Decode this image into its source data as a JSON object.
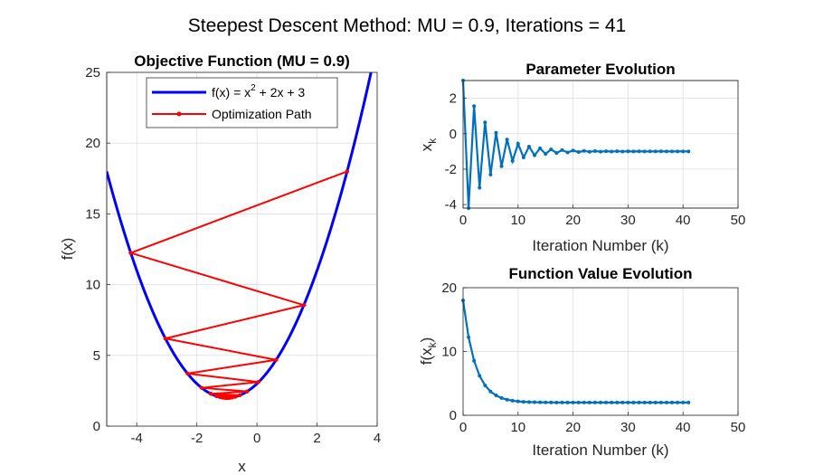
{
  "figure": {
    "title": "Steepest Descent Method: MU = 0.9, Iterations = 41",
    "colors": {
      "curve": "#0000FF",
      "path": "#FF0000",
      "series": "#0072BD"
    }
  },
  "chart_data": [
    {
      "type": "line",
      "title": "Objective Function (MU = 0.9)",
      "xlabel": "x",
      "ylabel": "f(x)",
      "xlim": [
        -5,
        4
      ],
      "ylim": [
        0,
        25
      ],
      "xticks": [
        -4,
        -2,
        0,
        2,
        4
      ],
      "yticks": [
        0,
        5,
        10,
        15,
        20,
        25
      ],
      "grid": true,
      "legend_position": "top",
      "function": "x^2 + 2x + 3",
      "series": [
        {
          "name_main": "f(x) = x",
          "name_sup": "2",
          "name_rest": " + 2x + 3",
          "color": "#0000FF",
          "style": "solid line"
        },
        {
          "name": "Optimization Path",
          "color": "#FF0000",
          "style": "line with point markers",
          "x": [
            3,
            -4.2,
            1.56,
            -3.048,
            0.6384,
            -2.3107,
            0.0486,
            -1.8389,
            -0.3289,
            -1.5369,
            -0.5705,
            -1.3436,
            -0.7251,
            -1.2199,
            -0.8241,
            -1.1407,
            -0.8874,
            -1.0901,
            -0.928,
            -1.0576,
            -0.9539,
            -1.0369,
            -0.9705,
            -1.0236,
            -0.9811,
            -1.0151,
            -0.9879,
            -1.0097,
            -0.9923,
            -1.0062,
            -0.995,
            -1.004,
            -0.9968,
            -1.0025,
            -0.998,
            -1.0016,
            -0.9987,
            -1.001,
            -0.9992,
            -1.0007,
            -0.9995,
            -1.0004
          ],
          "y": [
            18,
            12.24,
            8.5536,
            6.1943,
            4.6843,
            3.718,
            3.1195,
            2.7051,
            2.4508,
            2.2883,
            2.1847,
            2.1182,
            2.0756,
            2.0484,
            2.031,
            2.0198,
            2.0127,
            2.0081,
            2.0052,
            2.0033,
            2.0021,
            2.0014,
            2.0009,
            2.0006,
            2.0004,
            2.0002,
            2.0001,
            2.0001,
            2.0001,
            2.0,
            2.0,
            2.0,
            2.0,
            2.0,
            2.0,
            2.0,
            2.0,
            2.0,
            2.0,
            2.0,
            2.0,
            2.0
          ]
        }
      ]
    },
    {
      "type": "line",
      "title": "Parameter Evolution",
      "xlabel": "Iteration Number (k)",
      "ylabel_main": "x",
      "ylabel_sub": "k",
      "xlim": [
        0,
        50
      ],
      "ylim": [
        -4.2,
        3
      ],
      "xticks": [
        0,
        10,
        20,
        30,
        40,
        50
      ],
      "yticks": [
        -4,
        -2,
        0,
        2
      ],
      "grid": true,
      "series": [
        {
          "color": "#0072BD",
          "x": [
            0,
            1,
            2,
            3,
            4,
            5,
            6,
            7,
            8,
            9,
            10,
            11,
            12,
            13,
            14,
            15,
            16,
            17,
            18,
            19,
            20,
            21,
            22,
            23,
            24,
            25,
            26,
            27,
            28,
            29,
            30,
            31,
            32,
            33,
            34,
            35,
            36,
            37,
            38,
            39,
            40,
            41
          ],
          "values": [
            3,
            -4.2,
            1.56,
            -3.048,
            0.6384,
            -2.3107,
            0.0486,
            -1.8389,
            -0.3289,
            -1.5369,
            -0.5705,
            -1.3436,
            -0.7251,
            -1.2199,
            -0.8241,
            -1.1407,
            -0.8874,
            -1.0901,
            -0.928,
            -1.0576,
            -0.9539,
            -1.0369,
            -0.9705,
            -1.0236,
            -0.9811,
            -1.0151,
            -0.9879,
            -1.0097,
            -0.9923,
            -1.0062,
            -0.995,
            -1.004,
            -0.9968,
            -1.0025,
            -0.998,
            -1.0016,
            -0.9987,
            -1.001,
            -0.9992,
            -1.0007,
            -0.9995,
            -1.0004
          ]
        }
      ]
    },
    {
      "type": "line",
      "title": "Function Value Evolution",
      "xlabel": "Iteration Number (k)",
      "ylabel_main": "f(x",
      "ylabel_sub": "k",
      "ylabel_end": ")",
      "xlim": [
        0,
        50
      ],
      "ylim": [
        0,
        20
      ],
      "xticks": [
        0,
        10,
        20,
        30,
        40,
        50
      ],
      "yticks": [
        0,
        10,
        20
      ],
      "grid": true,
      "series": [
        {
          "color": "#0072BD",
          "x": [
            0,
            1,
            2,
            3,
            4,
            5,
            6,
            7,
            8,
            9,
            10,
            11,
            12,
            13,
            14,
            15,
            16,
            17,
            18,
            19,
            20,
            21,
            22,
            23,
            24,
            25,
            26,
            27,
            28,
            29,
            30,
            31,
            32,
            33,
            34,
            35,
            36,
            37,
            38,
            39,
            40,
            41
          ],
          "values": [
            18,
            12.24,
            8.5536,
            6.1943,
            4.6843,
            3.718,
            3.1195,
            2.7051,
            2.4508,
            2.2883,
            2.1847,
            2.1182,
            2.0756,
            2.0484,
            2.031,
            2.0198,
            2.0127,
            2.0081,
            2.0052,
            2.0033,
            2.0021,
            2.0014,
            2.0009,
            2.0006,
            2.0004,
            2.0002,
            2.0001,
            2.0001,
            2.0001,
            2.0,
            2.0,
            2.0,
            2.0,
            2.0,
            2.0,
            2.0,
            2.0,
            2.0,
            2.0,
            2.0,
            2.0,
            2.0
          ]
        }
      ]
    }
  ]
}
